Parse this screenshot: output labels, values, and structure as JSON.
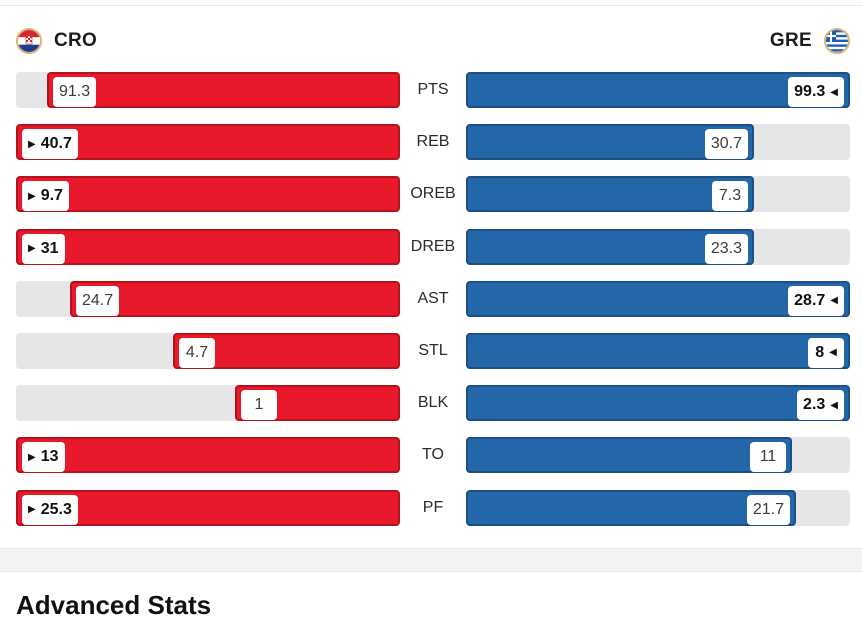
{
  "teams": {
    "left": {
      "code": "CRO",
      "flag_icon": "croatia-flag-icon",
      "color": "#e8192b"
    },
    "right": {
      "code": "GRE",
      "flag_icon": "greece-flag-icon",
      "color": "#2467a8"
    }
  },
  "bar_max": 100,
  "stats": [
    {
      "label": "PTS",
      "left": "91.3",
      "right": "99.3",
      "leader": "right"
    },
    {
      "label": "REB",
      "left": "40.7",
      "right": "30.7",
      "leader": "left"
    },
    {
      "label": "OREB",
      "left": "9.7",
      "right": "7.3",
      "leader": "left"
    },
    {
      "label": "DREB",
      "left": "31",
      "right": "23.3",
      "leader": "left"
    },
    {
      "label": "AST",
      "left": "24.7",
      "right": "28.7",
      "leader": "right"
    },
    {
      "label": "STL",
      "left": "4.7",
      "right": "8",
      "leader": "right"
    },
    {
      "label": "BLK",
      "left": "1",
      "right": "2.3",
      "leader": "right"
    },
    {
      "label": "TO",
      "left": "13",
      "right": "11",
      "leader": "left"
    },
    {
      "label": "PF",
      "left": "25.3",
      "right": "21.7",
      "leader": "left"
    }
  ],
  "bar_fractions": [
    {
      "left": 0.92,
      "right": 1.0
    },
    {
      "left": 1.0,
      "right": 0.75
    },
    {
      "left": 1.0,
      "right": 0.75
    },
    {
      "left": 1.0,
      "right": 0.75
    },
    {
      "left": 0.86,
      "right": 1.0
    },
    {
      "left": 0.59,
      "right": 1.0
    },
    {
      "left": 0.43,
      "right": 1.0
    },
    {
      "left": 1.0,
      "right": 0.85
    },
    {
      "left": 1.0,
      "right": 0.86
    }
  ],
  "next_section_title": "Advanced Stats"
}
